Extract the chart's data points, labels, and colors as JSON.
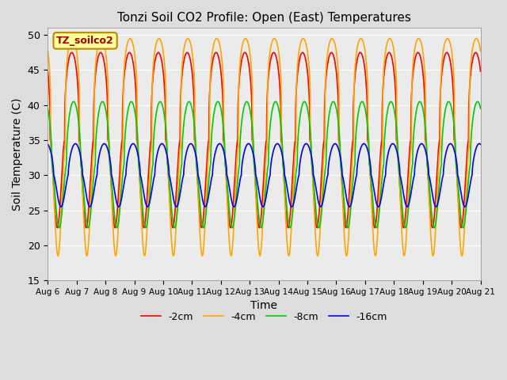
{
  "title": "Tonzi Soil CO2 Profile: Open (East) Temperatures",
  "xlabel": "Time",
  "ylabel": "Soil Temperature (C)",
  "ylim": [
    15,
    51
  ],
  "series": {
    "-2cm": {
      "color": "#FF0000",
      "amplitude": 12.5,
      "mean": 35.0,
      "phase_hours": 14.0,
      "skew": 0.35,
      "label": "-2cm"
    },
    "-4cm": {
      "color": "#FFA500",
      "amplitude": 15.5,
      "mean": 34.0,
      "phase_hours": 14.5,
      "skew": 0.25,
      "label": "-4cm"
    },
    "-8cm": {
      "color": "#00CC00",
      "amplitude": 9.0,
      "mean": 31.5,
      "phase_hours": 15.5,
      "skew": 0.5,
      "label": "-8cm"
    },
    "-16cm": {
      "color": "#0000FF",
      "amplitude": 4.5,
      "mean": 30.0,
      "phase_hours": 17.0,
      "skew": 0.6,
      "label": "-16cm"
    }
  },
  "x_tick_labels": [
    "Aug 6",
    "Aug 7",
    "Aug 8",
    "Aug 9",
    "Aug 10",
    "Aug 11",
    "Aug 12",
    "Aug 13",
    "Aug 14",
    "Aug 15",
    "Aug 16",
    "Aug 17",
    "Aug 18",
    "Aug 19",
    "Aug 20",
    "Aug 21"
  ],
  "legend_label": "TZ_soilco2",
  "legend_box_color": "#FFFF99",
  "legend_box_edge_color": "#BB8800",
  "bg_color": "#DDDDDD",
  "plot_bg_color": "#EBEBEB"
}
